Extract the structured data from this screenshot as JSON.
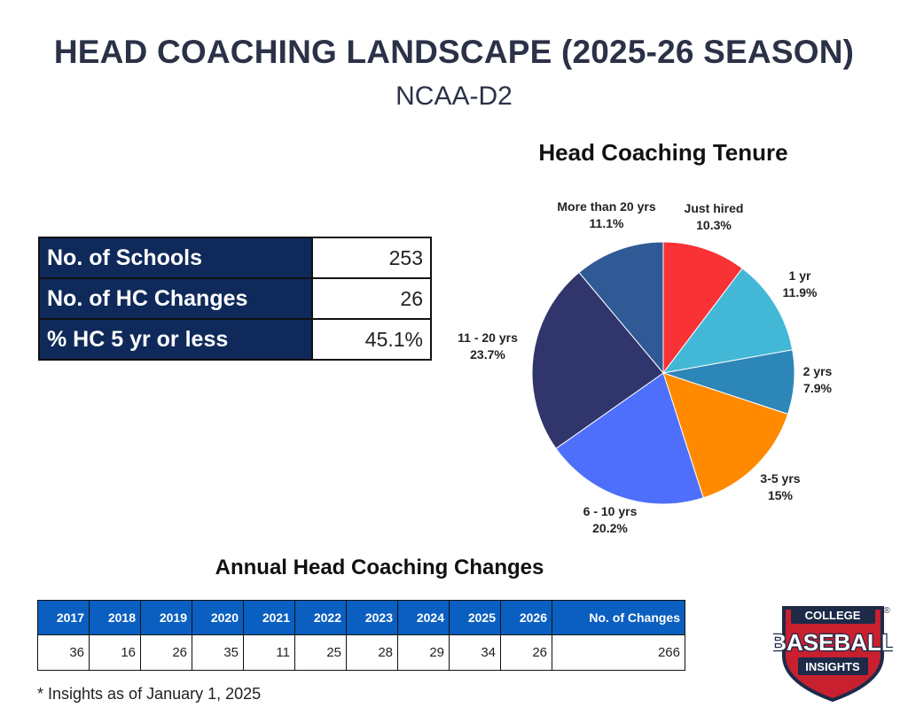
{
  "header": {
    "title": "HEAD COACHING LANDSCAPE (2025-26 SEASON)",
    "subtitle": "NCAA-D2"
  },
  "stats": [
    {
      "label": "No. of Schools",
      "value": "253"
    },
    {
      "label": "No. of HC Changes",
      "value": "26"
    },
    {
      "label": "% HC 5 yr or less",
      "value": "45.1%"
    }
  ],
  "chart_data": [
    {
      "type": "pie",
      "title": "Head Coaching Tenure",
      "slices": [
        {
          "label": "Just hired",
          "value": 10.3,
          "display": "10.3%",
          "color": "#f93236"
        },
        {
          "label": "1 yr",
          "value": 11.9,
          "display": "11.9%",
          "color": "#42b8d6"
        },
        {
          "label": "2 yrs",
          "value": 7.9,
          "display": "7.9%",
          "color": "#2d86b8"
        },
        {
          "label": "3-5 yrs",
          "value": 15,
          "display": "15%",
          "color": "#ff8a00"
        },
        {
          "label": "6 - 10 yrs",
          "value": 20.2,
          "display": "20.2%",
          "color": "#4d6ffb"
        },
        {
          "label": "11 - 20 yrs",
          "value": 23.7,
          "display": "23.7%",
          "color": "#30356b"
        },
        {
          "label": "More than 20 yrs",
          "value": 11.1,
          "display": "11.1%",
          "color": "#2f5a95"
        }
      ]
    },
    {
      "type": "table",
      "title": "Annual Head Coaching Changes",
      "columns": [
        "2017",
        "2018",
        "2019",
        "2020",
        "2021",
        "2022",
        "2023",
        "2024",
        "2025",
        "2026",
        "No. of Changes"
      ],
      "values": [
        "36",
        "16",
        "26",
        "35",
        "11",
        "25",
        "28",
        "29",
        "34",
        "26",
        "266"
      ]
    }
  ],
  "footnote": "* Insights as of January 1, 2025",
  "logo": {
    "top": "COLLEGE",
    "middle": "BASEBALL",
    "bottom": "INSIGHTS",
    "mark": "®"
  }
}
